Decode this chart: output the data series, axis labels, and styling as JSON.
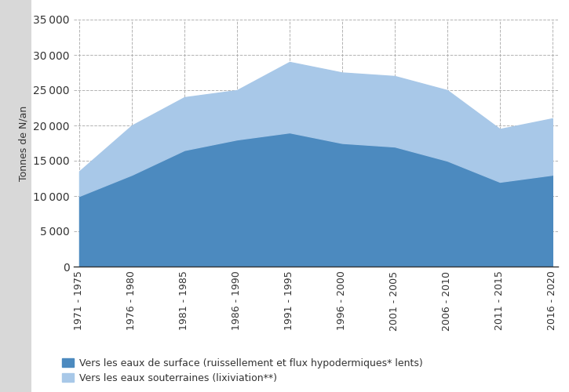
{
  "categories": [
    "1971 - 1975",
    "1976 - 1980",
    "1981 - 1985",
    "1986 - 1990",
    "1991 - 1995",
    "1996 - 2000",
    "2001 - 2005",
    "2006 - 2010",
    "2011 - 2015",
    "2016 - 2020"
  ],
  "surface_water": [
    10000,
    13000,
    16500,
    18000,
    19000,
    17500,
    17000,
    15000,
    12000,
    13000
  ],
  "groundwater_total": [
    13500,
    20000,
    24000,
    25000,
    29000,
    27500,
    27000,
    25000,
    19500,
    21000
  ],
  "color_surface": "#4c8abf",
  "color_groundwater": "#a8c8e8",
  "ylabel": "Tonnes de N/an",
  "ylim": [
    0,
    35000
  ],
  "yticks": [
    0,
    5000,
    10000,
    15000,
    20000,
    25000,
    30000,
    35000
  ],
  "legend_surface": "Vers les eaux de surface (ruissellement et flux hypodermiques* lents)",
  "legend_groundwater": "Vers les eaux souterraines (lixiviation**)",
  "background_color": "#ffffff",
  "grid_color": "#aaaaaa",
  "left_panel_color": "#d8d8d8"
}
